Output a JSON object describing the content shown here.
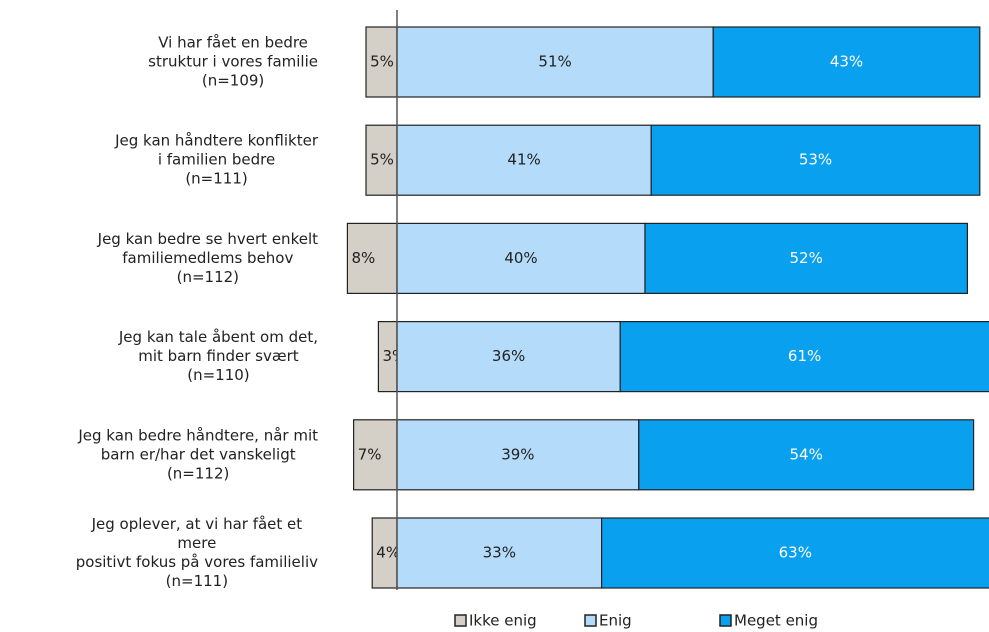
{
  "chart_data": {
    "type": "diverging_bar",
    "categories": [
      [
        "Vi har fået en bedre",
        "struktur i vores familie",
        "(n=109)"
      ],
      [
        "Jeg kan håndtere konflikter",
        "i familien bedre",
        "(n=111)"
      ],
      [
        "Jeg kan bedre se hvert enkelt",
        "familiemedlems behov",
        "(n=112)"
      ],
      [
        "Jeg kan tale åbent om det,",
        "mit barn finder svært",
        "(n=110)"
      ],
      [
        "Jeg kan bedre håndtere, når mit",
        "barn er/har det vanskeligt",
        "(n=112)"
      ],
      [
        "Jeg oplever, at vi har fået et",
        "mere",
        "positivt fokus på vores familieliv",
        "(n=111)"
      ]
    ],
    "series": [
      {
        "name": "Ikke enig",
        "color": "#d4d0c8",
        "direction": "negative",
        "values": [
          5,
          5,
          8,
          3,
          7,
          4
        ],
        "value_labels": [
          "5%",
          "5%",
          "8%",
          "3%",
          "7%",
          "4%"
        ]
      },
      {
        "name": "Enig",
        "color": "#b4dcfa",
        "values": [
          51,
          41,
          40,
          36,
          39,
          33
        ],
        "value_labels": [
          "51%",
          "41%",
          "40%",
          "36%",
          "39%",
          "33%"
        ]
      },
      {
        "name": "Meget enig",
        "color": "#0aa0f0",
        "values": [
          43,
          53,
          52,
          61,
          54,
          63
        ],
        "value_labels": [
          "43%",
          "53%",
          "52%",
          "61%",
          "54%",
          "63%"
        ]
      }
    ],
    "legend": "bottom"
  }
}
